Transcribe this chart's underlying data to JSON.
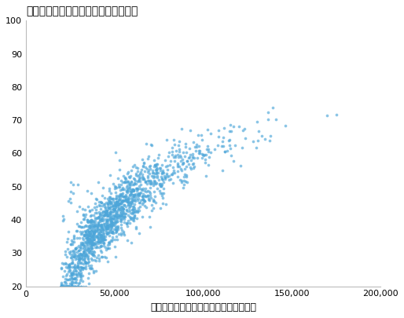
{
  "title": "家庭でインターネットを利用する割合",
  "xlabel": "アメリカにおける各家庭の所得の中央値",
  "ylabel": "",
  "xlim": [
    0,
    200000
  ],
  "ylim": [
    20,
    100
  ],
  "xticks": [
    0,
    50000,
    100000,
    150000,
    200000
  ],
  "yticks": [
    20,
    30,
    40,
    50,
    60,
    70,
    80,
    90,
    100
  ],
  "dot_color": "#4DA6D9",
  "dot_size": 7,
  "dot_alpha": 0.65,
  "n_points": 1500,
  "seed": 42
}
